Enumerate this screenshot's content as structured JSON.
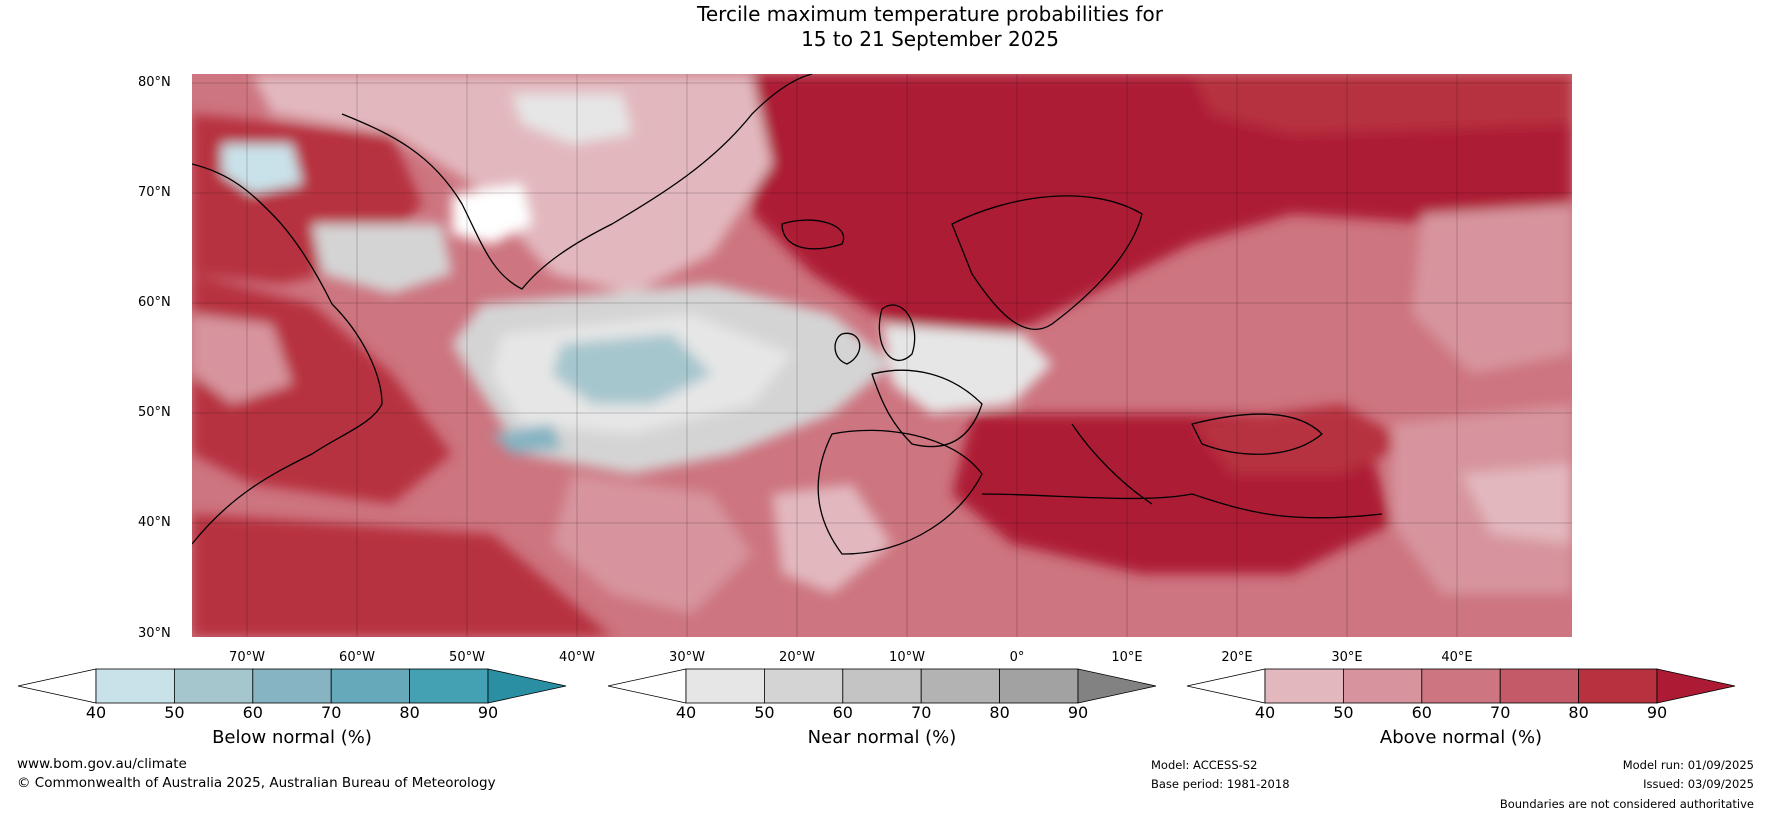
{
  "title": {
    "line1": "Tercile maximum temperature probabilities for",
    "line2": "15 to 21 September 2025"
  },
  "map": {
    "lat_labels": [
      "80°N",
      "70°N",
      "60°N",
      "50°N",
      "40°N",
      "30°N"
    ],
    "lon_labels": [
      "70°W",
      "60°W",
      "50°W",
      "40°W",
      "30°W",
      "20°W",
      "10°W",
      "0°",
      "10°E",
      "20°E",
      "30°E",
      "40°E"
    ]
  },
  "colorbars": [
    {
      "name": "below",
      "title": "Below normal (%)",
      "ticks": [
        "40",
        "50",
        "60",
        "70",
        "80",
        "90"
      ],
      "colors": [
        "#ffffff",
        "#c9e2e9",
        "#a6c6ce",
        "#86b4c2",
        "#66a9ba",
        "#44a0b3",
        "#2a8fa3"
      ]
    },
    {
      "name": "near",
      "title": "Near normal (%)",
      "ticks": [
        "40",
        "50",
        "60",
        "70",
        "80",
        "90"
      ],
      "colors": [
        "#ffffff",
        "#e6e6e6",
        "#d4d4d4",
        "#c4c4c4",
        "#b3b3b3",
        "#a2a2a2",
        "#828282"
      ]
    },
    {
      "name": "above",
      "title": "Above normal (%)",
      "ticks": [
        "40",
        "50",
        "60",
        "70",
        "80",
        "90"
      ],
      "colors": [
        "#ffffff",
        "#e2b8be",
        "#d7949e",
        "#cd7580",
        "#c45a67",
        "#b7313f",
        "#ad1a34"
      ]
    }
  ],
  "footer": {
    "website": "www.bom.gov.au/climate",
    "copyright": "© Commonwealth of Australia 2025, Australian Bureau of Meteorology",
    "model": "Model: ACCESS-S2",
    "base_period": "Base period: 1981-2018",
    "model_run": "Model run: 01/09/2025",
    "issued": "Issued: 03/09/2025",
    "disclaimer": "Boundaries are not considered authoritative"
  }
}
